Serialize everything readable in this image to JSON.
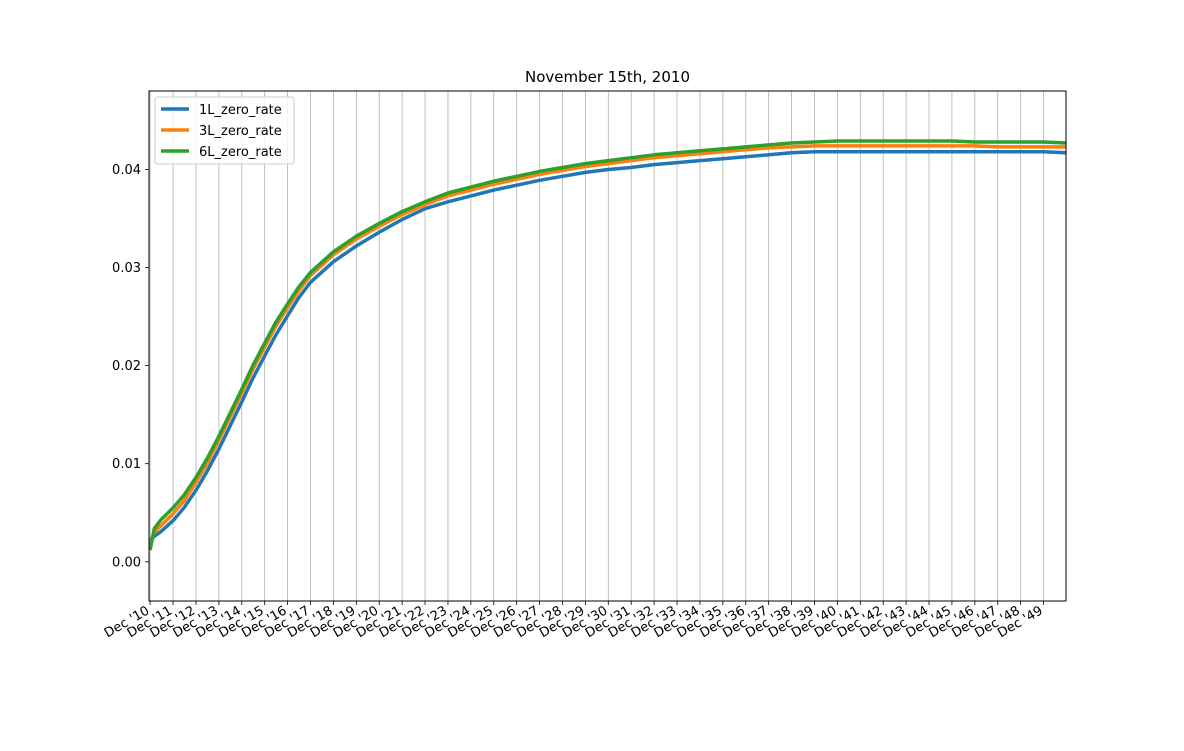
{
  "chart_data": {
    "type": "line",
    "title": "November 15th, 2010",
    "xlabel": "",
    "ylabel": "",
    "grid": {
      "x": true,
      "y": false
    },
    "legend_position": "top-left",
    "ylim": [
      -0.004,
      0.048
    ],
    "yticks": [
      0.0,
      0.01,
      0.02,
      0.03,
      0.04
    ],
    "ytick_labels": [
      "0.00",
      "0.01",
      "0.02",
      "0.03",
      "0.04"
    ],
    "xlim": [
      2010.87,
      2050.9
    ],
    "xticks": [
      2010.92,
      2011.92,
      2012.92,
      2013.92,
      2014.92,
      2015.92,
      2016.92,
      2017.92,
      2018.92,
      2019.92,
      2020.92,
      2021.92,
      2022.92,
      2023.92,
      2024.92,
      2025.92,
      2026.92,
      2027.92,
      2028.92,
      2029.92,
      2030.92,
      2031.92,
      2032.92,
      2033.92,
      2034.92,
      2035.92,
      2036.92,
      2037.92,
      2038.92,
      2039.92,
      2040.92,
      2041.92,
      2042.92,
      2043.92,
      2044.92,
      2045.92,
      2046.92,
      2047.92,
      2048.92,
      2049.92
    ],
    "xtick_labels": [
      "Dec '10",
      "Dec '11",
      "Dec '12",
      "Dec '13",
      "Dec '14",
      "Dec '15",
      "Dec '16",
      "Dec '17",
      "Dec '18",
      "Dec '19",
      "Dec '20",
      "Dec '21",
      "Dec '22",
      "Dec '23",
      "Dec '24",
      "Dec '25",
      "Dec '26",
      "Dec '27",
      "Dec '28",
      "Dec '29",
      "Dec '30",
      "Dec '31",
      "Dec '32",
      "Dec '33",
      "Dec '34",
      "Dec '35",
      "Dec '36",
      "Dec '37",
      "Dec '38",
      "Dec '39",
      "Dec '40",
      "Dec '41",
      "Dec '42",
      "Dec '43",
      "Dec '44",
      "Dec '45",
      "Dec '46",
      "Dec '47",
      "Dec '48",
      "Dec '49"
    ],
    "x": [
      2010.92,
      2011.1,
      2011.4,
      2011.92,
      2012.4,
      2012.92,
      2013.4,
      2013.92,
      2014.4,
      2014.92,
      2015.4,
      2015.92,
      2016.4,
      2016.92,
      2017.4,
      2017.92,
      2018.92,
      2019.92,
      2020.92,
      2021.92,
      2022.92,
      2023.92,
      2024.92,
      2025.92,
      2026.92,
      2027.92,
      2028.92,
      2029.92,
      2030.92,
      2031.92,
      2032.92,
      2033.92,
      2034.92,
      2035.92,
      2036.92,
      2037.92,
      2038.92,
      2039.92,
      2040.92,
      2041.92,
      2042.92,
      2043.92,
      2044.92,
      2045.92,
      2046.92,
      2047.92,
      2048.92,
      2049.92,
      2050.9
    ],
    "series": [
      {
        "name": "1L_zero_rate",
        "color": "#1f77b4",
        "values": [
          0.0022,
          0.0026,
          0.0031,
          0.0042,
          0.0055,
          0.0073,
          0.0092,
          0.0115,
          0.0138,
          0.0163,
          0.0187,
          0.021,
          0.0231,
          0.0251,
          0.0269,
          0.0285,
          0.0306,
          0.0322,
          0.0336,
          0.0349,
          0.036,
          0.0367,
          0.0373,
          0.0379,
          0.0384,
          0.0389,
          0.0393,
          0.0397,
          0.04,
          0.0402,
          0.0405,
          0.0407,
          0.0409,
          0.0411,
          0.0413,
          0.0415,
          0.0417,
          0.0418,
          0.0418,
          0.0418,
          0.0418,
          0.0418,
          0.0418,
          0.0418,
          0.0418,
          0.0418,
          0.0418,
          0.0418,
          0.0417
        ]
      },
      {
        "name": "3L_zero_rate",
        "color": "#ff7f0e",
        "values": [
          0.0018,
          0.003,
          0.0037,
          0.0049,
          0.0062,
          0.0081,
          0.01,
          0.0124,
          0.0147,
          0.0172,
          0.0196,
          0.0219,
          0.024,
          0.0259,
          0.0276,
          0.0292,
          0.0313,
          0.0329,
          0.0342,
          0.0354,
          0.0364,
          0.0373,
          0.0379,
          0.0385,
          0.039,
          0.0395,
          0.0399,
          0.0403,
          0.0406,
          0.0409,
          0.0412,
          0.0414,
          0.0416,
          0.0418,
          0.042,
          0.0422,
          0.0423,
          0.0424,
          0.0424,
          0.0424,
          0.0424,
          0.0424,
          0.0424,
          0.0424,
          0.0424,
          0.0423,
          0.0423,
          0.0423,
          0.0423
        ]
      },
      {
        "name": "6L_zero_rate",
        "color": "#2ca02c",
        "values": [
          0.0012,
          0.0034,
          0.0043,
          0.0055,
          0.0068,
          0.0086,
          0.0105,
          0.0128,
          0.0151,
          0.0176,
          0.02,
          0.0223,
          0.0244,
          0.0263,
          0.028,
          0.0295,
          0.0316,
          0.0332,
          0.0345,
          0.0357,
          0.0367,
          0.0376,
          0.0382,
          0.0388,
          0.0393,
          0.0398,
          0.0402,
          0.0406,
          0.0409,
          0.0412,
          0.0415,
          0.0417,
          0.0419,
          0.0421,
          0.0423,
          0.0425,
          0.0427,
          0.0428,
          0.0429,
          0.0429,
          0.0429,
          0.0429,
          0.0429,
          0.0429,
          0.0428,
          0.0428,
          0.0428,
          0.0428,
          0.0427
        ]
      }
    ]
  }
}
